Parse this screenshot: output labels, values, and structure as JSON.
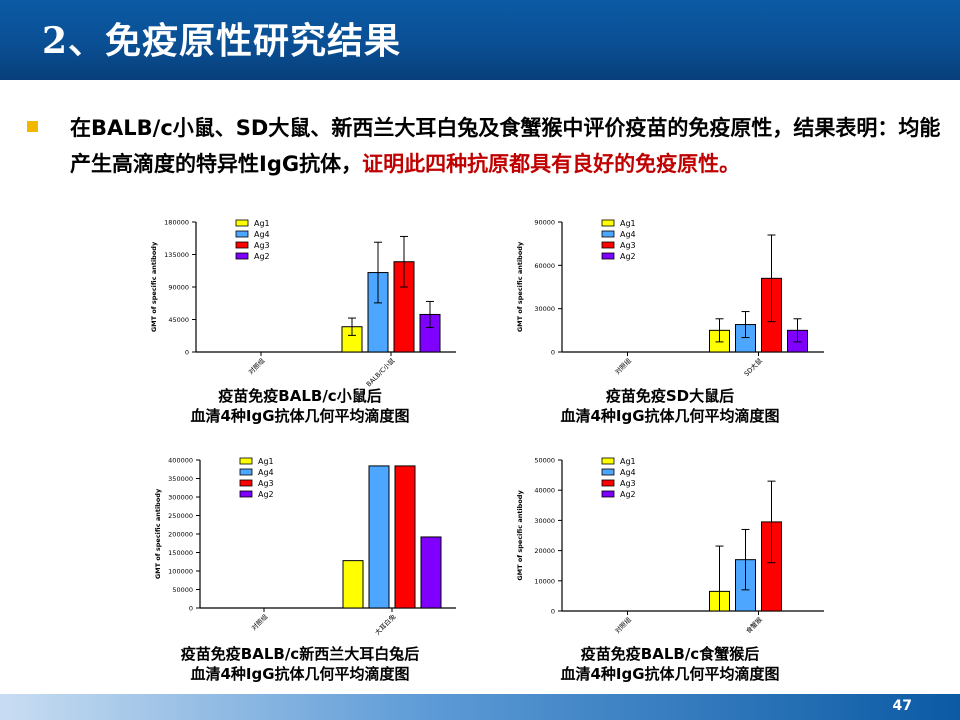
{
  "header": {
    "title": "2、免疫原性研究结果"
  },
  "intro": {
    "text": "在BALB/c小鼠、SD大鼠、新西兰大耳白兔及食蟹猴中评价疫苗的免疫原性，结果表明：均能产生高滴度的特异性IgG抗体，",
    "highlight": "证明此四种抗原都具有良好的免疫原性。"
  },
  "colors": {
    "Ag1": "#ffff00",
    "Ag4": "#4da6ff",
    "Ag3": "#ff0000",
    "Ag2": "#8000ff",
    "header": "#0a4f94",
    "accent": "#c00000"
  },
  "chart_data": [
    {
      "type": "bar",
      "title": "疫苗免疫BALB/c小鼠后",
      "subtitle": "血清4种IgG抗体几何平均滴度图",
      "ylabel": "GMT of specific antibody",
      "categories": [
        "对照组",
        "BALB/C小鼠"
      ],
      "yticks": [
        0,
        45000,
        90000,
        135000,
        180000
      ],
      "ylim": [
        0,
        180000
      ],
      "legend_position": "top-left",
      "series": [
        {
          "name": "Ag1",
          "values": [
            0,
            35000
          ],
          "errors": [
            0,
            12000
          ]
        },
        {
          "name": "Ag4",
          "values": [
            0,
            110000
          ],
          "errors": [
            0,
            42000
          ]
        },
        {
          "name": "Ag3",
          "values": [
            0,
            125000
          ],
          "errors": [
            0,
            35000
          ]
        },
        {
          "name": "Ag2",
          "values": [
            0,
            52000
          ],
          "errors": [
            0,
            18000
          ]
        }
      ]
    },
    {
      "type": "bar",
      "title": "疫苗免疫SD大鼠后",
      "subtitle": "血清4种IgG抗体几何平均滴度图",
      "ylabel": "GMT of specific antibody",
      "categories": [
        "对照组",
        "SD大鼠"
      ],
      "yticks": [
        0,
        30000,
        60000,
        90000
      ],
      "ylim": [
        0,
        90000
      ],
      "legend_position": "top-left",
      "series": [
        {
          "name": "Ag1",
          "values": [
            0,
            15000
          ],
          "errors": [
            0,
            8000
          ]
        },
        {
          "name": "Ag4",
          "values": [
            0,
            19000
          ],
          "errors": [
            0,
            9000
          ]
        },
        {
          "name": "Ag3",
          "values": [
            0,
            51000
          ],
          "errors": [
            0,
            30000
          ]
        },
        {
          "name": "Ag2",
          "values": [
            0,
            15000
          ],
          "errors": [
            0,
            8000
          ]
        }
      ]
    },
    {
      "type": "bar",
      "title": "疫苗免疫BALB/c新西兰大耳白兔后",
      "subtitle": "血清4种IgG抗体几何平均滴度图",
      "ylabel": "GMT of specific antibody",
      "categories": [
        "对照组",
        "大耳白兔"
      ],
      "yticks": [
        0,
        50000,
        100000,
        150000,
        200000,
        250000,
        300000,
        350000,
        400000
      ],
      "ylim": [
        0,
        400000
      ],
      "legend_position": "top-left",
      "series": [
        {
          "name": "Ag1",
          "values": [
            0,
            128000
          ],
          "errors": [
            0,
            0
          ]
        },
        {
          "name": "Ag4",
          "values": [
            0,
            384000
          ],
          "errors": [
            0,
            0
          ]
        },
        {
          "name": "Ag3",
          "values": [
            0,
            384000
          ],
          "errors": [
            0,
            0
          ]
        },
        {
          "name": "Ag2",
          "values": [
            0,
            192000
          ],
          "errors": [
            0,
            0
          ]
        }
      ]
    },
    {
      "type": "bar",
      "title": "疫苗免疫BALB/c食蟹猴后",
      "subtitle": "血清4种IgG抗体几何平均滴度图",
      "ylabel": "GMT of specific antibody",
      "categories": [
        "对照组",
        "食蟹猴"
      ],
      "yticks": [
        0,
        10000,
        20000,
        30000,
        40000,
        50000
      ],
      "ylim": [
        0,
        50000
      ],
      "legend_position": "top-left",
      "series": [
        {
          "name": "Ag1",
          "values": [
            0,
            6500
          ],
          "errors": [
            0,
            15000
          ]
        },
        {
          "name": "Ag4",
          "values": [
            0,
            17000
          ],
          "errors": [
            0,
            10000
          ]
        },
        {
          "name": "Ag3",
          "values": [
            0,
            29500
          ],
          "errors": [
            0,
            13500
          ]
        },
        {
          "name": "Ag2",
          "values": [
            0,
            0
          ],
          "errors": [
            0,
            0
          ]
        }
      ]
    }
  ],
  "footer": {
    "page_number": "47"
  }
}
